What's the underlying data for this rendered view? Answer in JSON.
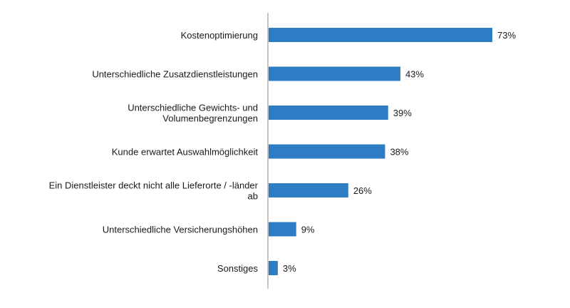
{
  "chart_data": {
    "type": "bar",
    "orientation": "horizontal",
    "categories": [
      [
        "Kostenoptimierung"
      ],
      [
        "Unterschiedliche Zusatzdienstleistungen"
      ],
      [
        "Unterschiedliche Gewichts- und",
        "Volumenbegrenzungen"
      ],
      [
        "Kunde erwartet Auswahlmöglichkeit"
      ],
      [
        "Ein Dienstleister  deckt nicht alle Lieferorte / -länder",
        "ab"
      ],
      [
        "Unterschiedliche Versicherungshöhen"
      ],
      [
        "Sonstiges"
      ]
    ],
    "values": [
      73,
      43,
      39,
      38,
      26,
      9,
      3
    ],
    "value_labels": [
      "73%",
      "43%",
      "39%",
      "38%",
      "26%",
      "9%",
      "3%"
    ],
    "unit": "%",
    "xlim": [
      0,
      73
    ],
    "bar_color": "#2e7dc4",
    "axis_color": "#8c8c8c",
    "grid": false,
    "legend": "none",
    "title": "",
    "xlabel": "",
    "ylabel": ""
  }
}
